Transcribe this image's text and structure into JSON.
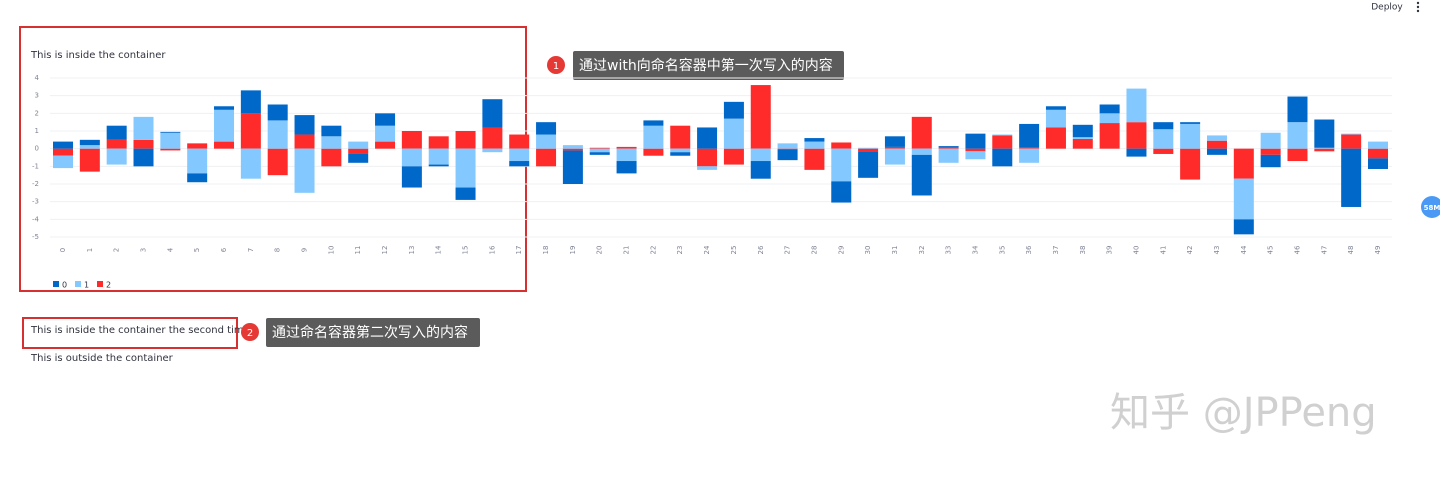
{
  "header": {
    "deploy": "Deploy"
  },
  "content": {
    "first_text": "This is inside the container",
    "second_text": "This is inside the container the second time!",
    "outside_text": "This is outside the container"
  },
  "annotations": [
    {
      "number": 1,
      "text": "通过with向命名容器中第一次写入的内容"
    },
    {
      "number": 2,
      "text": "通过命名容器第二次写入的内容"
    }
  ],
  "status_badge": "58M",
  "watermark": "知乎 @JPPeng",
  "chart_data": {
    "type": "bar",
    "stacked": true,
    "grid": true,
    "legend": "bottom-left",
    "categories": [
      "0",
      "1",
      "2",
      "3",
      "4",
      "5",
      "6",
      "7",
      "8",
      "9",
      "10",
      "11",
      "12",
      "13",
      "14",
      "15",
      "16",
      "17",
      "18",
      "19",
      "20",
      "21",
      "22",
      "23",
      "24",
      "25",
      "26",
      "27",
      "28",
      "29",
      "30",
      "31",
      "32",
      "33",
      "34",
      "35",
      "36",
      "37",
      "38",
      "39",
      "40",
      "41",
      "42",
      "43",
      "44",
      "45",
      "46",
      "47",
      "48",
      "49"
    ],
    "ylim": [
      -5,
      4
    ],
    "yticks": [
      -5,
      -4,
      -3,
      -2,
      -1,
      0,
      1,
      2,
      3,
      4
    ],
    "series": [
      {
        "name": "0",
        "color": "#0068c9",
        "values": [
          0.4,
          0.3,
          0.8,
          -1.0,
          0.05,
          -0.5,
          0.2,
          1.3,
          0.9,
          1.1,
          0.6,
          -0.5,
          0.7,
          -1.2,
          -0.1,
          -0.7,
          1.6,
          -0.3,
          0.7,
          -1.9,
          -0.15,
          -0.7,
          0.3,
          -0.2,
          1.2,
          0.95,
          -1.0,
          -0.6,
          0.2,
          -1.2,
          -1.5,
          0.6,
          -2.3,
          0.05,
          0.85,
          -1.0,
          1.35,
          0.2,
          0.7,
          0.5,
          -0.45,
          0.4,
          0.1,
          -0.35,
          -0.85,
          -0.7,
          1.45,
          1.6,
          -3.3,
          -0.6
        ]
      },
      {
        "name": "1",
        "color": "#83c9ff",
        "values": [
          -0.7,
          0.2,
          -0.9,
          1.3,
          0.9,
          -1.4,
          1.8,
          -1.7,
          1.6,
          -2.5,
          0.7,
          0.4,
          0.9,
          -1.0,
          -0.9,
          -2.2,
          -0.2,
          -0.7,
          0.8,
          0.2,
          -0.2,
          -0.7,
          1.3,
          -0.2,
          -0.2,
          1.7,
          -0.7,
          0.3,
          0.4,
          -1.85,
          0.05,
          -0.9,
          -0.35,
          -0.8,
          -0.45,
          0.05,
          -0.8,
          1.0,
          0.1,
          0.55,
          1.9,
          1.1,
          1.4,
          0.3,
          -2.3,
          0.9,
          1.5,
          0.05,
          0.05,
          0.4
        ]
      },
      {
        "name": "2",
        "color": "#ff2b2b",
        "values": [
          -0.4,
          -1.3,
          0.5,
          0.5,
          -0.1,
          0.3,
          0.4,
          2.0,
          -1.5,
          0.8,
          -1.0,
          -0.3,
          0.4,
          1.0,
          0.7,
          1.0,
          1.2,
          0.8,
          -1.0,
          -0.1,
          0.05,
          0.1,
          -0.4,
          1.3,
          -1.0,
          -0.9,
          3.6,
          -0.05,
          -1.2,
          0.35,
          -0.15,
          0.1,
          1.8,
          0.1,
          -0.15,
          0.75,
          0.05,
          1.2,
          0.55,
          1.45,
          1.5,
          -0.3,
          -1.75,
          0.45,
          -1.7,
          -0.35,
          -0.7,
          -0.15,
          0.8,
          -0.55
        ]
      }
    ]
  }
}
